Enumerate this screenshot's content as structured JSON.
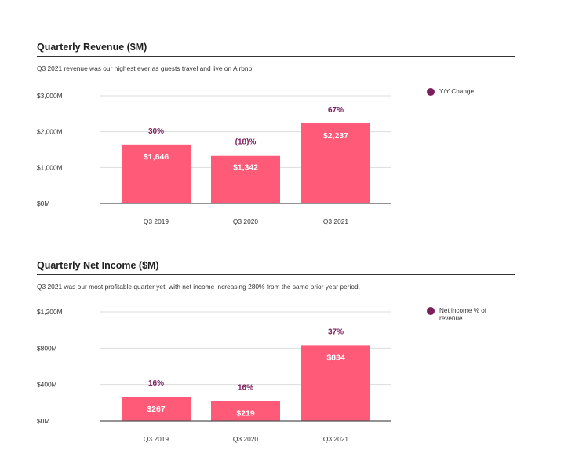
{
  "charts": {
    "revenue": {
      "title": "Quarterly Revenue ($M)",
      "subtitle": "Q3 2021 revenue was our highest ever as guests travel and live on Airbnb.",
      "legend": "Y/Y Change"
    },
    "net_income": {
      "title": "Quarterly Net Income ($M)",
      "subtitle": "Q3 2021 was our most profitable quarter yet, with net income increasing 280% from the same prior year period.",
      "legend": "Net income % of revenue"
    }
  },
  "colors": {
    "bar": "#ff5a78",
    "accent": "#7a1f5c",
    "grid": "#dddddd",
    "axis": "#555555"
  },
  "chart_data": [
    {
      "type": "bar",
      "title": "Quarterly Revenue ($M)",
      "categories": [
        "Q3 2019",
        "Q3 2020",
        "Q3 2021"
      ],
      "values": [
        1646,
        1342,
        2237
      ],
      "value_labels": [
        "$1,646",
        "$1,342",
        "$2,237"
      ],
      "annotations": [
        "30%",
        "(18)%",
        "67%"
      ],
      "annotation_series": "Y/Y Change",
      "yticks": [
        0,
        1000,
        2000,
        3000
      ],
      "ytick_labels": [
        "$0M",
        "$1,000M",
        "$2,000M",
        "$3,000M"
      ],
      "ylim": [
        0,
        3000
      ],
      "grid": true,
      "legend_position": "top-right"
    },
    {
      "type": "bar",
      "title": "Quarterly Net Income ($M)",
      "categories": [
        "Q3 2019",
        "Q3 2020",
        "Q3 2021"
      ],
      "values": [
        267,
        219,
        834
      ],
      "value_labels": [
        "$267",
        "$219",
        "$834"
      ],
      "annotations": [
        "16%",
        "16%",
        "37%"
      ],
      "annotation_series": "Net income % of revenue",
      "yticks": [
        0,
        400,
        800,
        1200
      ],
      "ytick_labels": [
        "$0M",
        "$400M",
        "$800M",
        "$1,200M"
      ],
      "ylim": [
        0,
        1200
      ],
      "grid": true,
      "legend_position": "top-right"
    }
  ]
}
